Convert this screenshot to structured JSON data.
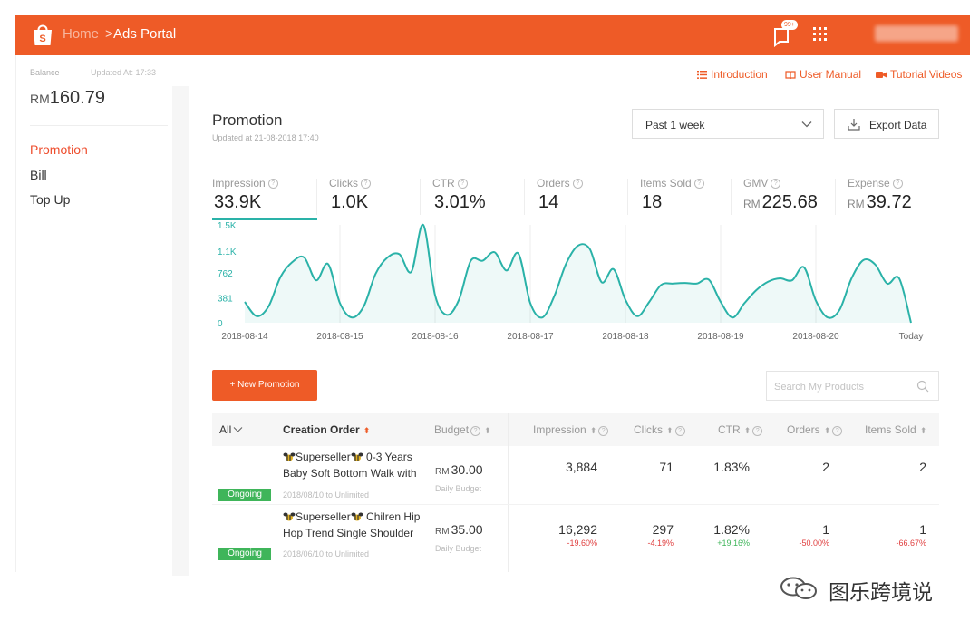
{
  "header": {
    "breadcrumb_home": "Home",
    "breadcrumb_sep": ">",
    "breadcrumb_current": "Ads Portal",
    "notification_badge": "99+",
    "user_name": "username",
    "accent_color": "#ee5b27"
  },
  "sidebar": {
    "balance_label": "Balance",
    "updated_label": "Updated At: 17:33",
    "balance_currency": "RM",
    "balance_value": "160.79",
    "items": [
      {
        "label": "Promotion",
        "active": true
      },
      {
        "label": "Bill",
        "active": false
      },
      {
        "label": "Top Up",
        "active": false
      }
    ]
  },
  "links": {
    "introduction": "Introduction",
    "user_manual": "User Manual",
    "tutorial_videos": "Tutorial Videos"
  },
  "promotion": {
    "title": "Promotion",
    "updated": "Updated at 21-08-2018 17:40",
    "period_selected": "Past 1 week",
    "export_label": "Export Data",
    "new_button": "+ New Promotion",
    "search_placeholder": "Search My Products"
  },
  "metrics": [
    {
      "label": "Impression",
      "value": "33.9K",
      "currency": ""
    },
    {
      "label": "Clicks",
      "value": "1.0K",
      "currency": ""
    },
    {
      "label": "CTR",
      "value": "3.01%",
      "currency": ""
    },
    {
      "label": "Orders",
      "value": "14",
      "currency": ""
    },
    {
      "label": "Items Sold",
      "value": "18",
      "currency": ""
    },
    {
      "label": "GMV",
      "value": "225.68",
      "currency": "RM"
    },
    {
      "label": "Expense",
      "value": "39.72",
      "currency": "RM"
    }
  ],
  "chart_data": {
    "type": "line",
    "series_color": "#2ab2a8",
    "y_ticks": [
      "1.5K",
      "1.1K",
      "762",
      "381",
      "0"
    ],
    "y_tick_values": [
      1500,
      1100,
      762,
      381,
      0
    ],
    "ylim": [
      0,
      1500
    ],
    "x_ticks": [
      "2018-08-14",
      "2018-08-15",
      "2018-08-16",
      "2018-08-17",
      "2018-08-18",
      "2018-08-19",
      "2018-08-20",
      "Today"
    ],
    "values": [
      320,
      100,
      250,
      700,
      930,
      1000,
      650,
      900,
      300,
      80,
      250,
      750,
      1000,
      1050,
      780,
      1500,
      420,
      120,
      350,
      950,
      950,
      1080,
      800,
      1060,
      300,
      80,
      400,
      900,
      1180,
      1130,
      620,
      820,
      350,
      100,
      320,
      580,
      600,
      610,
      600,
      660,
      320,
      80,
      300,
      500,
      630,
      680,
      650,
      850,
      340,
      80,
      200,
      680,
      960,
      890,
      600,
      680,
      0
    ],
    "grid": "vertical"
  },
  "table": {
    "headers": {
      "all": "All",
      "creation_order": "Creation Order",
      "budget": "Budget",
      "impression": "Impression",
      "clicks": "Clicks",
      "ctr": "CTR",
      "orders": "Orders",
      "items_sold": "Items Sold"
    },
    "rows": [
      {
        "status": "Ongoing",
        "name_line1": "Superseller",
        "name_line1b": "0-3 Years",
        "name_line2": "Baby Soft Bottom Walk with",
        "date": "2018/08/10 to Unlimited",
        "budget_currency": "RM",
        "budget": "30.00",
        "budget_type": "Daily Budget",
        "impression": "3,884",
        "impression_delta": "",
        "clicks": "71",
        "clicks_delta": "",
        "ctr": "1.83%",
        "ctr_delta": "",
        "orders": "2",
        "orders_delta": "",
        "items_sold": "2",
        "items_sold_delta": ""
      },
      {
        "status": "Ongoing",
        "name_line1": "Superseller",
        "name_line1b": "Chilren Hip",
        "name_line2": "Hop Trend Single Shoulder",
        "date": "2018/06/10 to Unlimited",
        "budget_currency": "RM",
        "budget": "35.00",
        "budget_type": "Daily Budget",
        "impression": "16,292",
        "impression_delta": "-19.60%",
        "clicks": "297",
        "clicks_delta": "-4.19%",
        "ctr": "1.82%",
        "ctr_delta": "+19.16%",
        "orders": "1",
        "orders_delta": "-50.00%",
        "items_sold": "1",
        "items_sold_delta": "-66.67%"
      }
    ]
  },
  "watermark": "图乐跨境说"
}
